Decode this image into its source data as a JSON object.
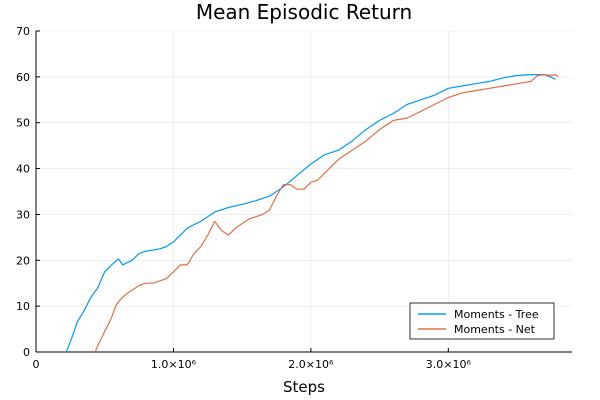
{
  "chart_data": {
    "type": "line",
    "title": "Mean Episodic Return",
    "xlabel": "Steps",
    "ylabel": "",
    "xlim": [
      0,
      3900000
    ],
    "ylim": [
      0,
      70
    ],
    "grid": true,
    "legend_position": "bottom-right",
    "x_ticks": [
      {
        "value": 0,
        "label": "0"
      },
      {
        "value": 1000000,
        "label": "1.0×10⁶"
      },
      {
        "value": 2000000,
        "label": "2.0×10⁶"
      },
      {
        "value": 3000000,
        "label": "3.0×10⁶"
      }
    ],
    "y_ticks": [
      {
        "value": 0,
        "label": "0"
      },
      {
        "value": 10,
        "label": "10"
      },
      {
        "value": 20,
        "label": "20"
      },
      {
        "value": 30,
        "label": "30"
      },
      {
        "value": 40,
        "label": "40"
      },
      {
        "value": 50,
        "label": "50"
      },
      {
        "value": 60,
        "label": "60"
      },
      {
        "value": 70,
        "label": "70"
      }
    ],
    "series": [
      {
        "name": "Moments - Tree",
        "color": "#009AFA",
        "points": [
          [
            220000,
            0
          ],
          [
            260000,
            3
          ],
          [
            300000,
            6.5
          ],
          [
            350000,
            9
          ],
          [
            400000,
            12
          ],
          [
            450000,
            14
          ],
          [
            500000,
            17.5
          ],
          [
            550000,
            19
          ],
          [
            600000,
            20.3
          ],
          [
            630000,
            19
          ],
          [
            700000,
            20
          ],
          [
            750000,
            21.5
          ],
          [
            800000,
            22
          ],
          [
            850000,
            22.2
          ],
          [
            900000,
            22.5
          ],
          [
            950000,
            23
          ],
          [
            1000000,
            24
          ],
          [
            1050000,
            25.5
          ],
          [
            1100000,
            27
          ],
          [
            1150000,
            27.8
          ],
          [
            1200000,
            28.5
          ],
          [
            1300000,
            30.5
          ],
          [
            1400000,
            31.5
          ],
          [
            1500000,
            32.2
          ],
          [
            1600000,
            33
          ],
          [
            1700000,
            34
          ],
          [
            1800000,
            36
          ],
          [
            1900000,
            38.5
          ],
          [
            2000000,
            41
          ],
          [
            2100000,
            43
          ],
          [
            2200000,
            44
          ],
          [
            2300000,
            46
          ],
          [
            2400000,
            48.5
          ],
          [
            2500000,
            50.5
          ],
          [
            2600000,
            52
          ],
          [
            2700000,
            54
          ],
          [
            2800000,
            55
          ],
          [
            2900000,
            56
          ],
          [
            3000000,
            57.5
          ],
          [
            3100000,
            58
          ],
          [
            3200000,
            58.5
          ],
          [
            3300000,
            59
          ],
          [
            3400000,
            59.8
          ],
          [
            3500000,
            60.3
          ],
          [
            3600000,
            60.5
          ],
          [
            3700000,
            60.5
          ],
          [
            3780000,
            59.5
          ]
        ]
      },
      {
        "name": "Moments - Net",
        "color": "#E26F46",
        "points": [
          [
            430000,
            0
          ],
          [
            460000,
            2
          ],
          [
            500000,
            4.5
          ],
          [
            550000,
            7.5
          ],
          [
            580000,
            10
          ],
          [
            600000,
            11
          ],
          [
            650000,
            12.5
          ],
          [
            700000,
            13.5
          ],
          [
            750000,
            14.5
          ],
          [
            800000,
            15
          ],
          [
            850000,
            15
          ],
          [
            900000,
            15.5
          ],
          [
            950000,
            16
          ],
          [
            1000000,
            17.5
          ],
          [
            1050000,
            19
          ],
          [
            1100000,
            19
          ],
          [
            1150000,
            21.5
          ],
          [
            1200000,
            23
          ],
          [
            1250000,
            25.5
          ],
          [
            1300000,
            28.5
          ],
          [
            1350000,
            26.5
          ],
          [
            1400000,
            25.5
          ],
          [
            1450000,
            27
          ],
          [
            1500000,
            28
          ],
          [
            1550000,
            29
          ],
          [
            1600000,
            29.5
          ],
          [
            1650000,
            30
          ],
          [
            1700000,
            31
          ],
          [
            1750000,
            34
          ],
          [
            1800000,
            36.5
          ],
          [
            1850000,
            36.5
          ],
          [
            1900000,
            35.5
          ],
          [
            1950000,
            35.5
          ],
          [
            2000000,
            37
          ],
          [
            2050000,
            37.5
          ],
          [
            2100000,
            39
          ],
          [
            2200000,
            42
          ],
          [
            2300000,
            44
          ],
          [
            2400000,
            46
          ],
          [
            2500000,
            48.5
          ],
          [
            2600000,
            50.5
          ],
          [
            2700000,
            51
          ],
          [
            2800000,
            52.5
          ],
          [
            2900000,
            54
          ],
          [
            3000000,
            55.5
          ],
          [
            3100000,
            56.5
          ],
          [
            3200000,
            57
          ],
          [
            3300000,
            57.5
          ],
          [
            3400000,
            58
          ],
          [
            3500000,
            58.5
          ],
          [
            3600000,
            59
          ],
          [
            3650000,
            60.3
          ],
          [
            3700000,
            60.5
          ],
          [
            3750000,
            60.3
          ],
          [
            3780000,
            60.5
          ],
          [
            3800000,
            60
          ]
        ]
      }
    ]
  }
}
